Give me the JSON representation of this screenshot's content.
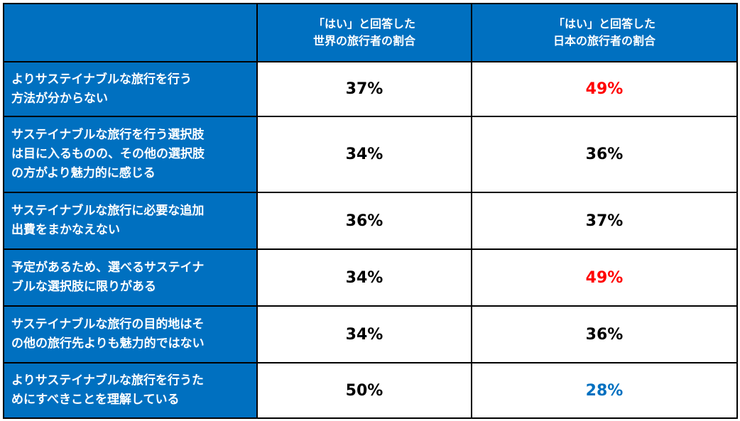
{
  "colors": {
    "header_bg": "#0070C0",
    "header_text": "#FFFFFF",
    "value_default": "#000000",
    "value_highlight_red": "#FF0000",
    "value_highlight_blue": "#0070C0"
  },
  "header": {
    "col1_line1": "「はい」と回答した",
    "col1_line2": "世界の旅行者の割合",
    "col2_line1": "「はい」と回答した",
    "col2_line2": "日本の旅行者の割合"
  },
  "rows": [
    {
      "label_lines": [
        "よりサステイナブルな旅行を行う",
        "方法が分からない"
      ],
      "world": "37%",
      "japan": "49%",
      "japan_color": "#FF0000"
    },
    {
      "label_lines": [
        "サステイナブルな旅行を行う選択肢",
        "は目に入るものの、その他の選択肢",
        "の方がより魅力的に感じる"
      ],
      "world": "34%",
      "japan": "36%",
      "japan_color": "#000000"
    },
    {
      "label_lines": [
        "サステイナブルな旅行に必要な追加",
        "出費をまかなえない"
      ],
      "world": "36%",
      "japan": "37%",
      "japan_color": "#000000"
    },
    {
      "label_lines": [
        "予定があるため、選べるサステイナ",
        "ブルな選択肢に限りがある"
      ],
      "world": "34%",
      "japan": "49%",
      "japan_color": "#FF0000"
    },
    {
      "label_lines": [
        "サステイナブルな旅行の目的地はそ",
        "の他の旅行先よりも魅力的ではない"
      ],
      "world": "34%",
      "japan": "36%",
      "japan_color": "#000000"
    },
    {
      "label_lines": [
        "よりサステイナブルな旅行を行うた",
        "めにすべきことを理解している"
      ],
      "world": "50%",
      "japan": "28%",
      "japan_color": "#0070C0"
    }
  ]
}
